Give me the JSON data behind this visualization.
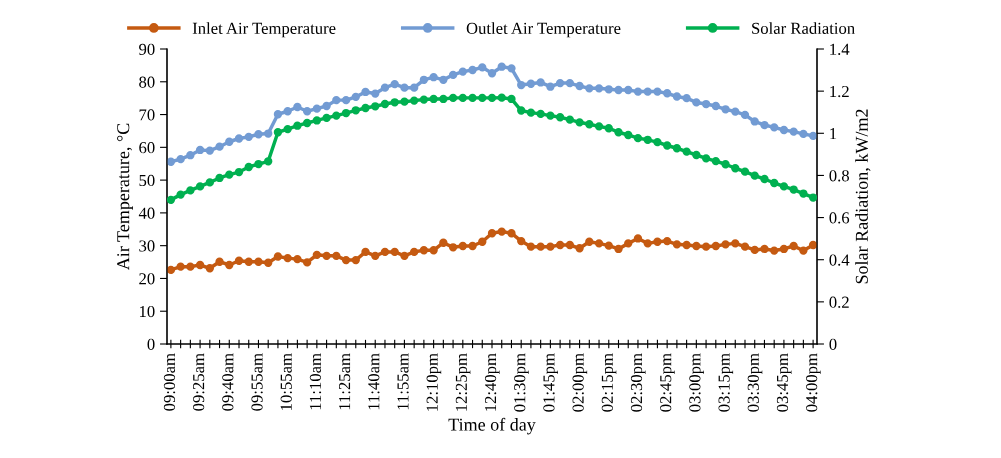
{
  "chart_data": {
    "type": "line",
    "xlabel": "Time of day",
    "ylabel": "Air Temperature, °C",
    "y2label": "Solar Radiation, kW/m2",
    "categories": [
      "09:00am",
      null,
      null,
      "09:25am",
      null,
      null,
      "09:40am",
      null,
      null,
      "09:55am",
      null,
      null,
      "10:55am",
      null,
      null,
      "11:10am",
      null,
      null,
      "11:25am",
      null,
      null,
      "11:40am",
      null,
      null,
      "11:55am",
      null,
      null,
      "12:10pm",
      null,
      null,
      "12:25pm",
      null,
      null,
      "12:40pm",
      null,
      null,
      "01:30pm",
      null,
      null,
      "01:45pm",
      null,
      null,
      "02:00pm",
      null,
      null,
      "02:15pm",
      null,
      null,
      "02:30pm",
      null,
      null,
      "02:45pm",
      null,
      null,
      "03:00pm",
      null,
      null,
      "03:15pm",
      null,
      null,
      "03:30pm",
      null,
      null,
      "03:45pm",
      null,
      null,
      "04:00pm"
    ],
    "series": [
      {
        "name": "Inlet Air Temperature",
        "color": "#c55a11",
        "values": [
          22.6,
          23.6,
          23.6,
          24.1,
          23.1,
          25.1,
          24.1,
          25.4,
          25.1,
          25.1,
          24.8,
          26.7,
          26.2,
          25.9,
          24.9,
          27.2,
          26.9,
          26.9,
          25.6,
          25.6,
          28.1,
          26.9,
          28.1,
          28.1,
          26.9,
          28.1,
          28.6,
          28.6,
          30.9,
          29.5,
          29.9,
          29.9,
          31.2,
          33.8,
          34.3,
          33.8,
          31.4,
          29.7,
          29.7,
          29.7,
          30.2,
          30.2,
          29.2,
          31.2,
          30.7,
          30,
          29,
          30.7,
          32.2,
          30.7,
          31.2,
          31.4,
          30.4,
          30.2,
          29.9,
          29.7,
          29.9,
          30.4,
          30.7,
          29.7,
          28.7,
          29,
          28.5,
          29,
          29.9,
          28.5,
          30.2
        ]
      },
      {
        "name": "Outlet Air Temperature",
        "color": "#729bd3",
        "values": [
          55.6,
          56.4,
          57.6,
          59.2,
          59,
          60.2,
          61.7,
          62.7,
          63.2,
          64,
          64.2,
          70.1,
          71,
          72.3,
          71,
          71.8,
          72.6,
          74.4,
          74.4,
          75.4,
          76.9,
          76.4,
          78.2,
          79.3,
          78.2,
          78.2,
          80.6,
          81.4,
          80.6,
          82.1,
          83.1,
          83.6,
          84.4,
          82.6,
          84.6,
          84.1,
          79,
          79.4,
          79.8,
          78.5,
          79.6,
          79.6,
          78.7,
          78,
          78,
          77.7,
          77.5,
          77.5,
          77,
          77,
          77,
          76.5,
          75.5,
          75,
          73.7,
          73.2,
          72.6,
          71.6,
          70.9,
          69.9,
          67.9,
          66.8,
          66.1,
          65.3,
          64.8,
          64.1,
          63.5
        ]
      },
      {
        "name": "Solar Radiation",
        "color": "#00b050",
        "axis": "y2",
        "values": [
          0.684,
          0.709,
          0.729,
          0.748,
          0.767,
          0.788,
          0.804,
          0.816,
          0.84,
          0.854,
          0.867,
          1.005,
          1.02,
          1.036,
          1.049,
          1.061,
          1.073,
          1.084,
          1.096,
          1.109,
          1.12,
          1.128,
          1.139,
          1.147,
          1.15,
          1.155,
          1.16,
          1.163,
          1.163,
          1.168,
          1.168,
          1.168,
          1.168,
          1.168,
          1.169,
          1.163,
          1.108,
          1.098,
          1.092,
          1.084,
          1.076,
          1.065,
          1.052,
          1.043,
          1.033,
          1.024,
          1.005,
          0.992,
          0.977,
          0.969,
          0.958,
          0.942,
          0.929,
          0.913,
          0.897,
          0.881,
          0.868,
          0.853,
          0.834,
          0.818,
          0.799,
          0.783,
          0.764,
          0.748,
          0.733,
          0.714,
          0.695
        ]
      }
    ],
    "ylim": [
      0,
      90
    ],
    "yticks": [
      0,
      10,
      20,
      30,
      40,
      50,
      60,
      70,
      80,
      90
    ],
    "y2lim": [
      0,
      1.4
    ],
    "y2ticks": [
      0,
      0.2,
      0.4,
      0.6,
      0.8,
      1,
      1.2,
      1.4
    ],
    "marker": "circle",
    "line_style": "solid",
    "grid": false,
    "legend": "top"
  }
}
